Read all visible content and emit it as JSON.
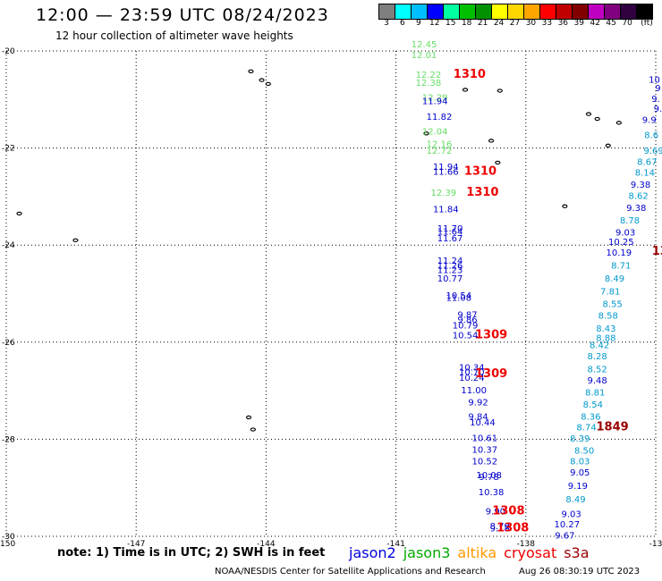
{
  "header": {
    "title": "12:00 — 23:59 UTC 08/24/2023",
    "subtitle": "12 hour collection of altimeter wave heights"
  },
  "colorbar": {
    "colors": [
      "#7f7f7f",
      "#00ffff",
      "#00bfff",
      "#0000ff",
      "#00ffa0",
      "#00c000",
      "#009000",
      "#ffff00",
      "#ffd700",
      "#ffa500",
      "#ff0000",
      "#c00000",
      "#800000",
      "#c000c0",
      "#800080",
      "#300040",
      "#000000"
    ],
    "labels": [
      "3",
      "6",
      "9",
      "12",
      "15",
      "18",
      "21",
      "24",
      "27",
      "30",
      "33",
      "36",
      "39",
      "42",
      "45",
      "70",
      "(ft)"
    ]
  },
  "axes": {
    "lon_ticks": [
      "-150",
      "-147",
      "-144",
      "-141",
      "-138",
      "-13"
    ],
    "lat_ticks": [
      "-20",
      "-22",
      "-24",
      "-26",
      "-28",
      "-30"
    ],
    "lon_range": [
      -150,
      -135
    ],
    "lat_range": [
      -30,
      -20
    ],
    "grid": "dotted"
  },
  "tracks": [
    {
      "mission": "jason3",
      "color": "#66dd66",
      "readings": [
        {
          "v": "12.45",
          "lon": -140.35,
          "lat": -19.93
        },
        {
          "v": "12.01",
          "lon": -140.35,
          "lat": -20.15
        },
        {
          "v": "12.22",
          "lon": -140.25,
          "lat": -20.55
        },
        {
          "v": "12.38",
          "lon": -140.25,
          "lat": -20.72
        },
        {
          "v": "12.29",
          "lon": -140.1,
          "lat": -21.02
        }
      ]
    },
    {
      "mission": "jason2",
      "color": "#0000cc",
      "readings": [
        {
          "v": "11.94",
          "lon": -140.1,
          "lat": -21.1
        },
        {
          "v": "11.82",
          "lon": -140.0,
          "lat": -21.42
        }
      ]
    },
    {
      "mission": "jason3",
      "color": "#66dd66",
      "readings": [
        {
          "v": "12.04",
          "lon": -140.1,
          "lat": -21.72
        },
        {
          "v": "12.16",
          "lon": -140.0,
          "lat": -21.98
        },
        {
          "v": "12.72",
          "lon": -140.0,
          "lat": -22.12
        }
      ]
    },
    {
      "mission": "jason2",
      "color": "#0000cc",
      "readings": [
        {
          "v": "11.94",
          "lon": -139.85,
          "lat": -22.45
        },
        {
          "v": "11.66",
          "lon": -139.85,
          "lat": -22.55
        }
      ]
    },
    {
      "mission": "jason3",
      "color": "#66dd66",
      "readings": [
        {
          "v": "12.39",
          "lon": -139.9,
          "lat": -22.98
        }
      ]
    },
    {
      "mission": "jason2",
      "color": "#0000cc",
      "readings": [
        {
          "v": "11.84",
          "lon": -139.85,
          "lat": -23.32
        },
        {
          "v": "11.70",
          "lon": -139.75,
          "lat": -23.72
        },
        {
          "v": "11.64",
          "lon": -139.75,
          "lat": -23.78
        },
        {
          "v": "11.67",
          "lon": -139.75,
          "lat": -23.92
        },
        {
          "v": "11.24",
          "lon": -139.75,
          "lat": -24.38
        },
        {
          "v": "11.26",
          "lon": -139.75,
          "lat": -24.48
        },
        {
          "v": "11.23",
          "lon": -139.75,
          "lat": -24.58
        },
        {
          "v": "10.77",
          "lon": -139.75,
          "lat": -24.75
        },
        {
          "v": "10.54",
          "lon": -139.55,
          "lat": -25.1
        },
        {
          "v": "11.08",
          "lon": -139.55,
          "lat": -25.15
        },
        {
          "v": "9.87",
          "lon": -139.35,
          "lat": -25.5
        },
        {
          "v": "9.86",
          "lon": -139.35,
          "lat": -25.6
        },
        {
          "v": "10.79",
          "lon": -139.4,
          "lat": -25.72
        },
        {
          "v": "10.54",
          "lon": -139.4,
          "lat": -25.92
        },
        {
          "v": "10.34",
          "lon": -139.25,
          "lat": -26.58
        },
        {
          "v": "10.70",
          "lon": -139.25,
          "lat": -26.68
        },
        {
          "v": "10.24",
          "lon": -139.25,
          "lat": -26.8
        },
        {
          "v": "11.00",
          "lon": -139.2,
          "lat": -27.05
        },
        {
          "v": "9.92",
          "lon": -139.1,
          "lat": -27.3
        },
        {
          "v": "9.84",
          "lon": -139.1,
          "lat": -27.6
        },
        {
          "v": "10.44",
          "lon": -139.0,
          "lat": -27.72
        },
        {
          "v": "10.61",
          "lon": -138.95,
          "lat": -28.04
        },
        {
          "v": "10.37",
          "lon": -138.95,
          "lat": -28.28
        },
        {
          "v": "10.52",
          "lon": -138.95,
          "lat": -28.52
        },
        {
          "v": "10.08",
          "lon": -138.85,
          "lat": -28.8
        },
        {
          "v": "9.78",
          "lon": -138.85,
          "lat": -28.84
        },
        {
          "v": "10.38",
          "lon": -138.8,
          "lat": -29.15
        },
        {
          "v": "9.90",
          "lon": -138.7,
          "lat": -29.55
        },
        {
          "v": "8.79",
          "lon": -138.6,
          "lat": -29.85
        },
        {
          "v": "9.18",
          "lon": -138.6,
          "lat": -29.9
        }
      ]
    },
    {
      "mission": "s3a",
      "color": "#0000cc",
      "readings": [
        {
          "v": "10",
          "lon": -135.03,
          "lat": -20.65
        },
        {
          "v": "9",
          "lon": -134.95,
          "lat": -20.83
        },
        {
          "v": "9.",
          "lon": -135.0,
          "lat": -21.05
        },
        {
          "v": "9.",
          "lon": -134.95,
          "lat": -21.25
        },
        {
          "v": "9.9",
          "lon": -135.15,
          "lat": -21.48
        },
        {
          "v": "9.38",
          "lon": -135.35,
          "lat": -22.82
        },
        {
          "v": "9.38",
          "lon": -135.45,
          "lat": -23.3
        },
        {
          "v": "9.03",
          "lon": -135.7,
          "lat": -23.8
        },
        {
          "v": "10.25",
          "lon": -135.8,
          "lat": -24.0
        },
        {
          "v": "10.19",
          "lon": -135.85,
          "lat": -24.22
        },
        {
          "v": "9.48",
          "lon": -136.35,
          "lat": -26.85
        },
        {
          "v": "9.05",
          "lon": -136.75,
          "lat": -28.75
        },
        {
          "v": "9.19",
          "lon": -136.8,
          "lat": -29.02
        },
        {
          "v": "9.03",
          "lon": -136.95,
          "lat": -29.6
        },
        {
          "v": "10.27",
          "lon": -137.05,
          "lat": -29.82
        },
        {
          "v": "9.67",
          "lon": -137.1,
          "lat": -30.05
        }
      ]
    },
    {
      "mission": "s3a",
      "color": "#0099cc",
      "readings": [
        {
          "v": "8.6",
          "lon": -135.1,
          "lat": -21.8
        },
        {
          "v": "9.69",
          "lon": -135.05,
          "lat": -22.12
        },
        {
          "v": "8.67",
          "lon": -135.2,
          "lat": -22.35
        },
        {
          "v": "8.14",
          "lon": -135.25,
          "lat": -22.57
        },
        {
          "v": "8.62",
          "lon": -135.4,
          "lat": -23.05
        },
        {
          "v": "8.78",
          "lon": -135.6,
          "lat": -23.55
        },
        {
          "v": "8.71",
          "lon": -135.8,
          "lat": -24.48
        },
        {
          "v": "8.49",
          "lon": -135.95,
          "lat": -24.75
        },
        {
          "v": "7.81",
          "lon": -136.05,
          "lat": -25.02
        },
        {
          "v": "8.55",
          "lon": -136.0,
          "lat": -25.28
        },
        {
          "v": "8.58",
          "lon": -136.1,
          "lat": -25.52
        },
        {
          "v": "8.43",
          "lon": -136.15,
          "lat": -25.78
        },
        {
          "v": "8.88",
          "lon": -136.15,
          "lat": -25.98
        },
        {
          "v": "8.42",
          "lon": -136.3,
          "lat": -26.12
        },
        {
          "v": "8.28",
          "lon": -136.35,
          "lat": -26.35
        },
        {
          "v": "8.52",
          "lon": -136.35,
          "lat": -26.62
        },
        {
          "v": "8.81",
          "lon": -136.4,
          "lat": -27.1
        },
        {
          "v": "8.54",
          "lon": -136.45,
          "lat": -27.35
        },
        {
          "v": "8.36",
          "lon": -136.5,
          "lat": -27.6
        },
        {
          "v": "8.74",
          "lon": -136.6,
          "lat": -27.82
        },
        {
          "v": "8.39",
          "lon": -136.75,
          "lat": -28.05
        },
        {
          "v": "8.50",
          "lon": -136.65,
          "lat": -28.3
        },
        {
          "v": "8.03",
          "lon": -136.75,
          "lat": -28.52
        },
        {
          "v": "8.49",
          "lon": -136.85,
          "lat": -29.3
        }
      ]
    }
  ],
  "altimetry_ids": [
    {
      "v": "1310",
      "color": "#ee0000",
      "lon": -139.3,
      "lat": -20.55
    },
    {
      "v": "1310",
      "color": "#ee0000",
      "lon": -139.05,
      "lat": -22.55
    },
    {
      "v": "1310",
      "color": "#ee0000",
      "lon": -139.0,
      "lat": -22.98
    },
    {
      "v": "1309",
      "color": "#ee0000",
      "lon": -138.8,
      "lat": -25.92
    },
    {
      "v": "1309",
      "color": "#ee0000",
      "lon": -138.8,
      "lat": -26.72
    },
    {
      "v": "1849",
      "color": "#990000",
      "lon": -136.0,
      "lat": -27.82
    },
    {
      "v": "1308",
      "color": "#ee0000",
      "lon": -138.4,
      "lat": -29.55
    },
    {
      "v": "1308",
      "color": "#ee0000",
      "lon": -138.3,
      "lat": -29.9
    },
    {
      "v": "13",
      "color": "#990000",
      "lon": -134.9,
      "lat": -24.2
    }
  ],
  "islands": [
    {
      "lon": -144.35,
      "lat": -20.42
    },
    {
      "lon": -144.1,
      "lat": -20.6
    },
    {
      "lon": -143.95,
      "lat": -20.68
    },
    {
      "lon": -149.7,
      "lat": -23.35
    },
    {
      "lon": -148.4,
      "lat": -23.9
    },
    {
      "lon": -144.4,
      "lat": -27.55
    },
    {
      "lon": -144.3,
      "lat": -27.8
    },
    {
      "lon": -139.4,
      "lat": -20.8
    },
    {
      "lon": -138.6,
      "lat": -20.82
    },
    {
      "lon": -140.3,
      "lat": -21.7
    },
    {
      "lon": -138.8,
      "lat": -21.85
    },
    {
      "lon": -138.65,
      "lat": -22.3
    },
    {
      "lon": -136.55,
      "lat": -21.3
    },
    {
      "lon": -136.35,
      "lat": -21.4
    },
    {
      "lon": -135.85,
      "lat": -21.48
    },
    {
      "lon": -136.1,
      "lat": -21.95
    },
    {
      "lon": -137.1,
      "lat": -23.2
    }
  ],
  "footer": {
    "note": "note:  1) Time is in UTC;  2) SWH is in feet",
    "missions": [
      {
        "label": "jason2",
        "color": "#0000dd"
      },
      {
        "label": "jason3",
        "color": "#00aa00"
      },
      {
        "label": "altika",
        "color": "#ff9900"
      },
      {
        "label": "cryosat",
        "color": "#ee0000"
      },
      {
        "label": "s3a",
        "color": "#990000"
      }
    ],
    "credit": "NOAA/NESDIS Center for Satellite Applications and Research",
    "timestamp": "Aug 26 08:30:19 UTC 2023"
  }
}
